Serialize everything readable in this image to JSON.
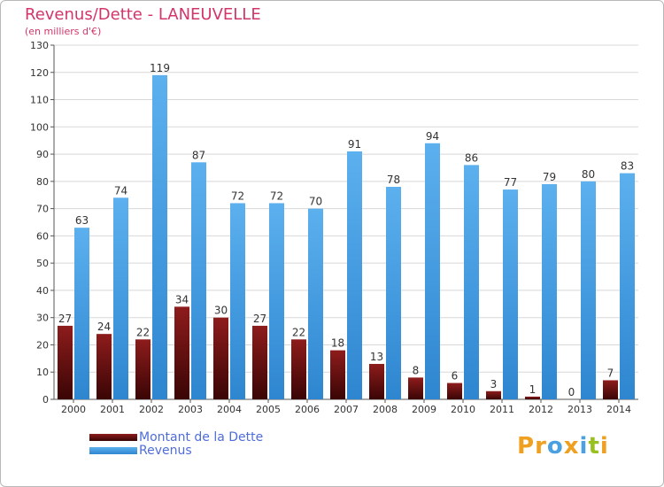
{
  "title": "Revenus/Dette - LANEUVELLE",
  "subtitle": "(en milliers d'€)",
  "colors": {
    "debt": "#7a1010",
    "revenue": "#4da3e6",
    "title": "#d2356a",
    "legend_text": "#4f6dd8"
  },
  "legend": [
    {
      "label": "Montant de la Dette",
      "color": "#6a0f0f"
    },
    {
      "label": "Revenus",
      "color": "#4da3e6"
    }
  ],
  "logo": {
    "text": "Proxiti",
    "letters": [
      "P",
      "r",
      "o",
      "x",
      "i",
      "t",
      "i"
    ],
    "colors": [
      "#f0a020",
      "#f0a020",
      "#4aa0e0",
      "#f0a020",
      "#4aa0e0",
      "#98c020",
      "#f0a020"
    ]
  },
  "chart_data": {
    "type": "bar",
    "categories": [
      "2000",
      "2001",
      "2002",
      "2003",
      "2004",
      "2005",
      "2006",
      "2007",
      "2008",
      "2009",
      "2010",
      "2011",
      "2012",
      "2013",
      "2014"
    ],
    "series": [
      {
        "name": "Montant de la Dette",
        "values": [
          27,
          24,
          22,
          34,
          30,
          27,
          22,
          18,
          13,
          8,
          6,
          3,
          1,
          0,
          7
        ]
      },
      {
        "name": "Revenus",
        "values": [
          63,
          74,
          119,
          87,
          72,
          72,
          70,
          91,
          78,
          94,
          86,
          77,
          79,
          80,
          83
        ]
      }
    ],
    "ylim": [
      0,
      130
    ],
    "yticks": [
      0,
      10,
      20,
      30,
      40,
      50,
      60,
      70,
      80,
      90,
      100,
      110,
      120,
      130
    ],
    "grid": true,
    "legend_position": "bottom-left"
  }
}
